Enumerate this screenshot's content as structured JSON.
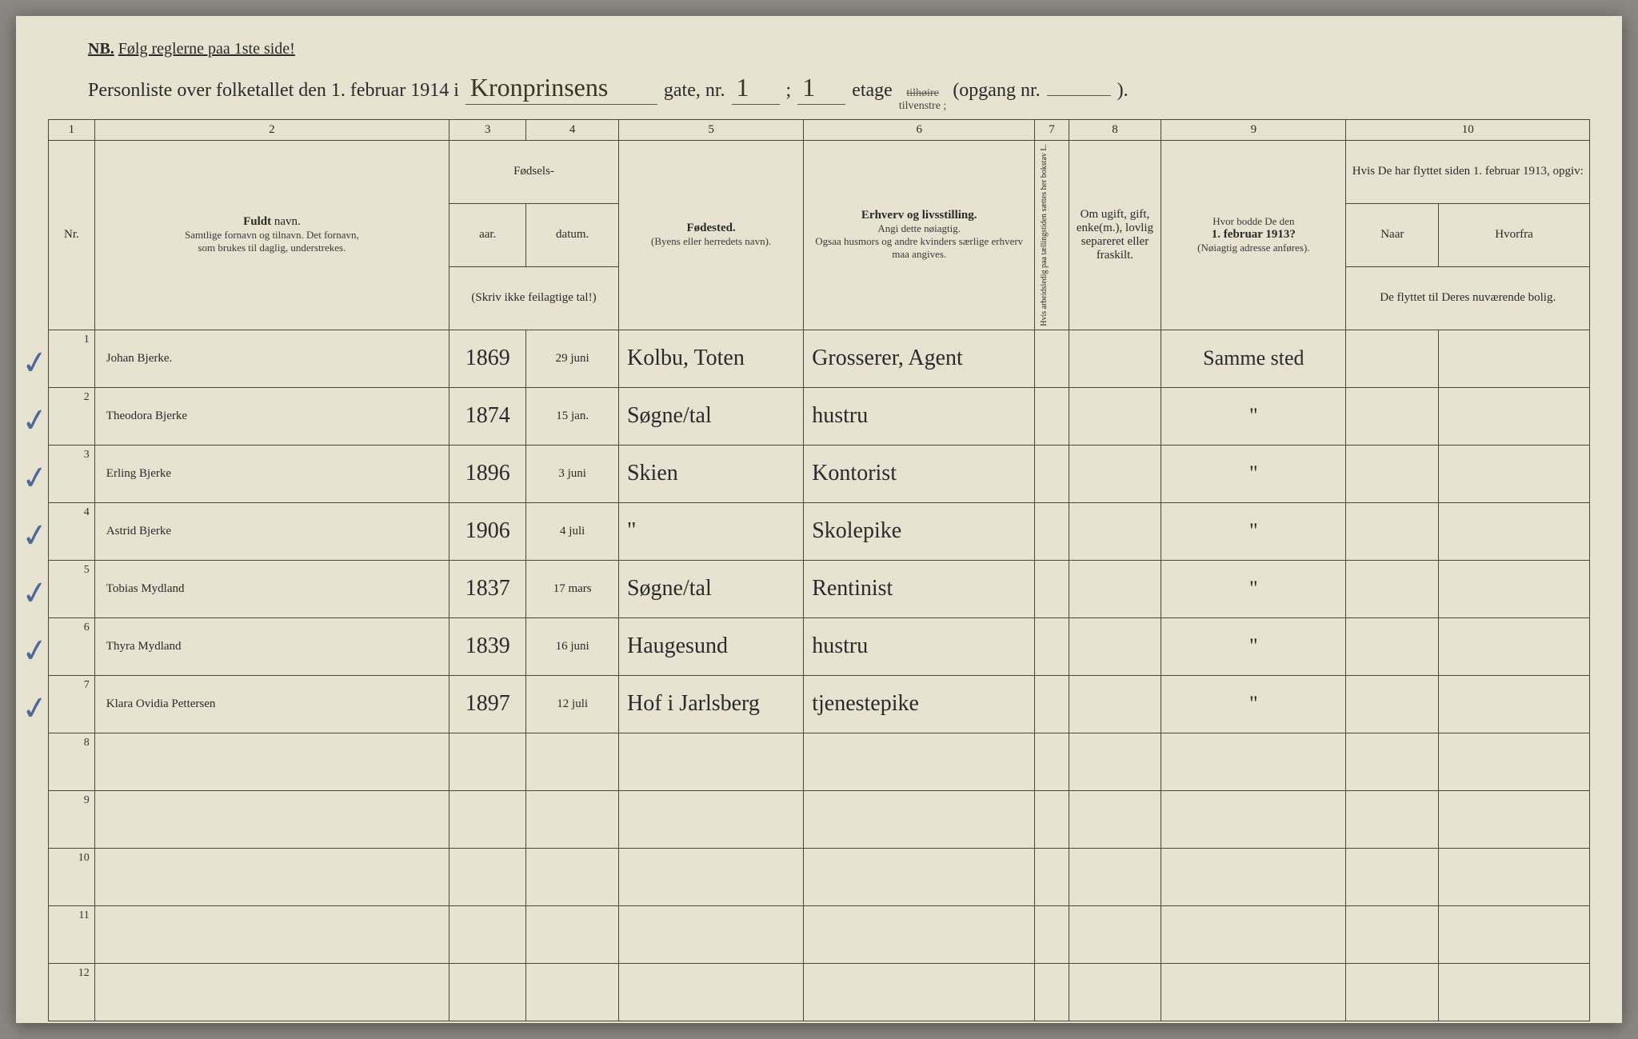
{
  "nb": {
    "prefix": "NB.",
    "text": "Følg reglerne paa 1ste side!"
  },
  "title": {
    "prefix": "Personliste over folketallet den 1. februar 1914 i",
    "street": "Kronprinsens",
    "gate_label": "gate, nr.",
    "gate_nr": "1",
    "semicolon": ";",
    "floor_nr": "1",
    "etage_label": "etage",
    "struck": "tilhøire",
    "below_struck": "tilvenstre ;",
    "opgang_label": "(opgang nr.",
    "opgang_nr": "",
    "closing": ")."
  },
  "colnums": [
    "1",
    "2",
    "3",
    "4",
    "5",
    "6",
    "7",
    "8",
    "9",
    "10"
  ],
  "headers": {
    "nr": "Nr.",
    "name_bold": "Fuldt",
    "name_rest": "navn.",
    "name_sub1": "Samtlige fornavn og tilnavn. Det fornavn,",
    "name_sub2": "som brukes til daglig, understrekes.",
    "birth_top": "Fødsels-",
    "birth_year": "aar.",
    "birth_date": "datum.",
    "birth_sub": "(Skriv ikke feilagtige tal!)",
    "birthplace_bold": "Fødested.",
    "birthplace_sub": "(Byens eller herredets navn).",
    "occ_bold": "Erhverv og livsstilling.",
    "occ_sub1": "Angi dette nøiagtig.",
    "occ_sub2": "Ogsaa husmors og andre kvinders særlige erhverv maa angives.",
    "col7": "Hvis arbeidsledig paa tællingstiden sættes her bokstav L.",
    "col8_top": "Om ugift, gift, enke(m.), lovlig separeret eller fraskilt.",
    "col9_top": "Hvor bodde De den",
    "col9_bold": "1. februar 1913?",
    "col9_sub": "(Nøiagtig adresse anføres).",
    "col10_top": "Hvis De har flyttet siden 1. februar 1913, opgiv:",
    "col10_naar": "Naar",
    "col10_hvorfra": "Hvorfra",
    "col10_sub": "De flyttet til Deres nuværende bolig."
  },
  "rows": [
    {
      "nr": "1",
      "check": "✓",
      "name": "Johan Bjerke.",
      "year": "1869",
      "date": "29 juni",
      "place": "Kolbu, Toten",
      "occ": "Grosserer, Agent",
      "col7": "",
      "col8": "",
      "addr": "Samme sted",
      "naar": "",
      "hvorfra": ""
    },
    {
      "nr": "2",
      "check": "✓",
      "name": "Theodora Bjerke",
      "year": "1874",
      "date": "15 jan.",
      "place": "Søgne/tal",
      "occ": "hustru",
      "col7": "",
      "col8": "",
      "addr": "\"",
      "naar": "",
      "hvorfra": ""
    },
    {
      "nr": "3",
      "check": "✓",
      "name": "Erling Bjerke",
      "year": "1896",
      "date": "3 juni",
      "place": "Skien",
      "occ": "Kontorist",
      "col7": "",
      "col8": "",
      "addr": "\"",
      "naar": "",
      "hvorfra": ""
    },
    {
      "nr": "4",
      "check": "✓",
      "name": "Astrid Bjerke",
      "year": "1906",
      "date": "4 juli",
      "place": "\"",
      "occ": "Skolepike",
      "col7": "",
      "col8": "",
      "addr": "\"",
      "naar": "",
      "hvorfra": ""
    },
    {
      "nr": "5",
      "check": "✓",
      "name": "Tobias Mydland",
      "year": "1837",
      "date": "17 mars",
      "place": "Søgne/tal",
      "occ": "Rentinist",
      "col7": "",
      "col8": "",
      "addr": "\"",
      "naar": "",
      "hvorfra": ""
    },
    {
      "nr": "6",
      "check": "✓",
      "name": "Thyra Mydland",
      "year": "1839",
      "date": "16 juni",
      "place": "Haugesund",
      "occ": "hustru",
      "col7": "",
      "col8": "",
      "addr": "\"",
      "naar": "",
      "hvorfra": ""
    },
    {
      "nr": "7",
      "check": "✓",
      "name": "Klara Ovidia Pettersen",
      "year": "1897",
      "date": "12 juli",
      "place": "Hof i Jarlsberg",
      "occ": "tjenestepike",
      "col7": "",
      "col8": "",
      "addr": "\"",
      "naar": "",
      "hvorfra": ""
    },
    {
      "nr": "8",
      "check": "",
      "name": "",
      "year": "",
      "date": "",
      "place": "",
      "occ": "",
      "col7": "",
      "col8": "",
      "addr": "",
      "naar": "",
      "hvorfra": ""
    },
    {
      "nr": "9",
      "check": "",
      "name": "",
      "year": "",
      "date": "",
      "place": "",
      "occ": "",
      "col7": "",
      "col8": "",
      "addr": "",
      "naar": "",
      "hvorfra": ""
    },
    {
      "nr": "10",
      "check": "",
      "name": "",
      "year": "",
      "date": "",
      "place": "",
      "occ": "",
      "col7": "",
      "col8": "",
      "addr": "",
      "naar": "",
      "hvorfra": ""
    },
    {
      "nr": "11",
      "check": "",
      "name": "",
      "year": "",
      "date": "",
      "place": "",
      "occ": "",
      "col7": "",
      "col8": "",
      "addr": "",
      "naar": "",
      "hvorfra": ""
    },
    {
      "nr": "12",
      "check": "",
      "name": "",
      "year": "",
      "date": "",
      "place": "",
      "occ": "",
      "col7": "",
      "col8": "",
      "addr": "",
      "naar": "",
      "hvorfra": ""
    }
  ],
  "colwidths": {
    "nr": "3%",
    "name": "23%",
    "year": "5%",
    "date": "6%",
    "place": "12%",
    "occ": "15%",
    "c7": "2.2%",
    "c8": "6%",
    "addr": "12%",
    "naar": "6%",
    "hvorfra": "9.8%"
  },
  "colors": {
    "paper": "#e8e2d0",
    "ink_print": "#2a2a2a",
    "ink_hand": "#3b3424",
    "rule": "#4a4538",
    "check": "#4a6a9a"
  }
}
